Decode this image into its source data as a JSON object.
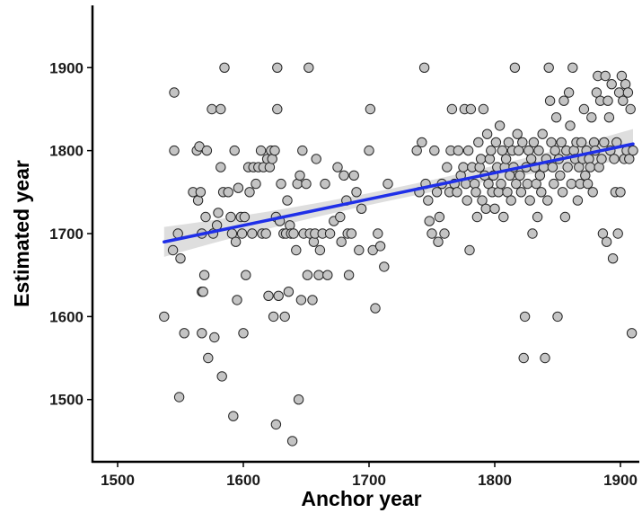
{
  "chart_data": {
    "type": "scatter",
    "title": "",
    "xlabel": "Anchor year",
    "ylabel": "Estimated year",
    "xlim": [
      1480,
      1915
    ],
    "ylim": [
      1425,
      1975
    ],
    "xticks": [
      1500,
      1600,
      1700,
      1800,
      1900
    ],
    "yticks": [
      1500,
      1600,
      1700,
      1800,
      1900
    ],
    "xtick_labels": [
      "1500",
      "1600",
      "1700",
      "1800",
      "1900"
    ],
    "ytick_labels": [
      "1500",
      "1600",
      "1700",
      "1800",
      "1900"
    ],
    "grid": false,
    "legend": "none",
    "colors": {
      "points_fill": "#c4c4c4",
      "points_edge": "#262626",
      "trend": "#1f2fe8",
      "band": "#c8c8c8"
    },
    "trend": {
      "x": [
        1537,
        1910
      ],
      "y": [
        1690,
        1808
      ],
      "band_halfwidth_ends": 18,
      "band_halfwidth_mid": 7
    },
    "points": [
      [
        1537,
        1600
      ],
      [
        1545,
        1870
      ],
      [
        1545,
        1800
      ],
      [
        1544,
        1680
      ],
      [
        1548,
        1700
      ],
      [
        1550,
        1670
      ],
      [
        1549,
        1503
      ],
      [
        1553,
        1580
      ],
      [
        1560,
        1750
      ],
      [
        1563,
        1800
      ],
      [
        1564,
        1740
      ],
      [
        1565,
        1805
      ],
      [
        1566,
        1750
      ],
      [
        1567,
        1700
      ],
      [
        1567,
        1630
      ],
      [
        1568,
        1630
      ],
      [
        1569,
        1650
      ],
      [
        1570,
        1720
      ],
      [
        1571,
        1800
      ],
      [
        1567,
        1580
      ],
      [
        1572,
        1550
      ],
      [
        1575,
        1850
      ],
      [
        1576,
        1700
      ],
      [
        1577,
        1575
      ],
      [
        1579,
        1710
      ],
      [
        1580,
        1725
      ],
      [
        1582,
        1850
      ],
      [
        1582,
        1780
      ],
      [
        1584,
        1750
      ],
      [
        1585,
        1900
      ],
      [
        1583,
        1528
      ],
      [
        1588,
        1750
      ],
      [
        1590,
        1720
      ],
      [
        1591,
        1700
      ],
      [
        1592,
        1480
      ],
      [
        1593,
        1800
      ],
      [
        1594,
        1690
      ],
      [
        1595,
        1620
      ],
      [
        1596,
        1755
      ],
      [
        1598,
        1720
      ],
      [
        1599,
        1700
      ],
      [
        1600,
        1580
      ],
      [
        1601,
        1720
      ],
      [
        1602,
        1650
      ],
      [
        1604,
        1780
      ],
      [
        1605,
        1750
      ],
      [
        1607,
        1700
      ],
      [
        1608,
        1780
      ],
      [
        1610,
        1760
      ],
      [
        1612,
        1780
      ],
      [
        1614,
        1800
      ],
      [
        1615,
        1700
      ],
      [
        1616,
        1780
      ],
      [
        1618,
        1700
      ],
      [
        1619,
        1790
      ],
      [
        1620,
        1625
      ],
      [
        1621,
        1780
      ],
      [
        1622,
        1800
      ],
      [
        1623,
        1790
      ],
      [
        1624,
        1600
      ],
      [
        1625,
        1800
      ],
      [
        1626,
        1720
      ],
      [
        1626,
        1470
      ],
      [
        1627,
        1900
      ],
      [
        1627,
        1850
      ],
      [
        1628,
        1625
      ],
      [
        1629,
        1715
      ],
      [
        1630,
        1760
      ],
      [
        1632,
        1700
      ],
      [
        1633,
        1600
      ],
      [
        1634,
        1700
      ],
      [
        1635,
        1740
      ],
      [
        1636,
        1630
      ],
      [
        1637,
        1710
      ],
      [
        1638,
        1700
      ],
      [
        1639,
        1450
      ],
      [
        1640,
        1700
      ],
      [
        1642,
        1680
      ],
      [
        1643,
        1760
      ],
      [
        1644,
        1500
      ],
      [
        1645,
        1770
      ],
      [
        1646,
        1620
      ],
      [
        1647,
        1800
      ],
      [
        1648,
        1700
      ],
      [
        1650,
        1760
      ],
      [
        1651,
        1650
      ],
      [
        1652,
        1900
      ],
      [
        1653,
        1700
      ],
      [
        1655,
        1620
      ],
      [
        1656,
        1690
      ],
      [
        1657,
        1700
      ],
      [
        1658,
        1790
      ],
      [
        1660,
        1650
      ],
      [
        1661,
        1680
      ],
      [
        1663,
        1700
      ],
      [
        1665,
        1760
      ],
      [
        1667,
        1650
      ],
      [
        1669,
        1700
      ],
      [
        1672,
        1715
      ],
      [
        1675,
        1780
      ],
      [
        1677,
        1720
      ],
      [
        1678,
        1690
      ],
      [
        1680,
        1770
      ],
      [
        1682,
        1740
      ],
      [
        1683,
        1700
      ],
      [
        1684,
        1650
      ],
      [
        1686,
        1700
      ],
      [
        1688,
        1770
      ],
      [
        1690,
        1750
      ],
      [
        1692,
        1680
      ],
      [
        1694,
        1730
      ],
      [
        1700,
        1800
      ],
      [
        1701,
        1850
      ],
      [
        1703,
        1680
      ],
      [
        1705,
        1610
      ],
      [
        1707,
        1700
      ],
      [
        1709,
        1685
      ],
      [
        1712,
        1660
      ],
      [
        1715,
        1760
      ],
      [
        1738,
        1800
      ],
      [
        1740,
        1750
      ],
      [
        1742,
        1810
      ],
      [
        1744,
        1900
      ],
      [
        1745,
        1760
      ],
      [
        1747,
        1740
      ],
      [
        1748,
        1715
      ],
      [
        1750,
        1700
      ],
      [
        1752,
        1800
      ],
      [
        1754,
        1750
      ],
      [
        1755,
        1690
      ],
      [
        1756,
        1720
      ],
      [
        1758,
        1760
      ],
      [
        1760,
        1700
      ],
      [
        1762,
        1780
      ],
      [
        1764,
        1750
      ],
      [
        1765,
        1800
      ],
      [
        1766,
        1850
      ],
      [
        1768,
        1760
      ],
      [
        1770,
        1750
      ],
      [
        1771,
        1800
      ],
      [
        1773,
        1770
      ],
      [
        1775,
        1780
      ],
      [
        1776,
        1850
      ],
      [
        1777,
        1760
      ],
      [
        1778,
        1740
      ],
      [
        1779,
        1800
      ],
      [
        1780,
        1680
      ],
      [
        1781,
        1850
      ],
      [
        1782,
        1780
      ],
      [
        1784,
        1760
      ],
      [
        1785,
        1750
      ],
      [
        1786,
        1720
      ],
      [
        1787,
        1810
      ],
      [
        1788,
        1780
      ],
      [
        1789,
        1790
      ],
      [
        1790,
        1740
      ],
      [
        1791,
        1850
      ],
      [
        1792,
        1770
      ],
      [
        1793,
        1730
      ],
      [
        1794,
        1820
      ],
      [
        1795,
        1760
      ],
      [
        1796,
        1790
      ],
      [
        1797,
        1800
      ],
      [
        1798,
        1750
      ],
      [
        1799,
        1770
      ],
      [
        1800,
        1730
      ],
      [
        1801,
        1810
      ],
      [
        1802,
        1780
      ],
      [
        1803,
        1750
      ],
      [
        1804,
        1830
      ],
      [
        1805,
        1760
      ],
      [
        1806,
        1800
      ],
      [
        1807,
        1720
      ],
      [
        1808,
        1780
      ],
      [
        1809,
        1790
      ],
      [
        1810,
        1750
      ],
      [
        1811,
        1810
      ],
      [
        1812,
        1770
      ],
      [
        1813,
        1740
      ],
      [
        1814,
        1800
      ],
      [
        1815,
        1780
      ],
      [
        1816,
        1900
      ],
      [
        1817,
        1760
      ],
      [
        1818,
        1820
      ],
      [
        1819,
        1800
      ],
      [
        1820,
        1770
      ],
      [
        1821,
        1750
      ],
      [
        1822,
        1810
      ],
      [
        1823,
        1550
      ],
      [
        1824,
        1600
      ],
      [
        1825,
        1780
      ],
      [
        1826,
        1760
      ],
      [
        1827,
        1800
      ],
      [
        1828,
        1740
      ],
      [
        1829,
        1790
      ],
      [
        1830,
        1700
      ],
      [
        1831,
        1810
      ],
      [
        1832,
        1780
      ],
      [
        1833,
        1760
      ],
      [
        1834,
        1720
      ],
      [
        1835,
        1800
      ],
      [
        1836,
        1770
      ],
      [
        1837,
        1750
      ],
      [
        1838,
        1820
      ],
      [
        1839,
        1780
      ],
      [
        1840,
        1550
      ],
      [
        1841,
        1790
      ],
      [
        1842,
        1740
      ],
      [
        1843,
        1900
      ],
      [
        1844,
        1860
      ],
      [
        1845,
        1810
      ],
      [
        1846,
        1780
      ],
      [
        1847,
        1760
      ],
      [
        1848,
        1800
      ],
      [
        1849,
        1840
      ],
      [
        1850,
        1600
      ],
      [
        1851,
        1790
      ],
      [
        1852,
        1770
      ],
      [
        1853,
        1810
      ],
      [
        1854,
        1750
      ],
      [
        1855,
        1860
      ],
      [
        1856,
        1720
      ],
      [
        1857,
        1800
      ],
      [
        1858,
        1780
      ],
      [
        1859,
        1870
      ],
      [
        1860,
        1830
      ],
      [
        1861,
        1760
      ],
      [
        1862,
        1900
      ],
      [
        1863,
        1800
      ],
      [
        1864,
        1790
      ],
      [
        1865,
        1810
      ],
      [
        1866,
        1740
      ],
      [
        1867,
        1780
      ],
      [
        1868,
        1760
      ],
      [
        1869,
        1810
      ],
      [
        1870,
        1790
      ],
      [
        1871,
        1850
      ],
      [
        1872,
        1770
      ],
      [
        1873,
        1800
      ],
      [
        1874,
        1760
      ],
      [
        1875,
        1790
      ],
      [
        1876,
        1780
      ],
      [
        1877,
        1840
      ],
      [
        1878,
        1750
      ],
      [
        1879,
        1810
      ],
      [
        1880,
        1800
      ],
      [
        1881,
        1870
      ],
      [
        1882,
        1890
      ],
      [
        1883,
        1780
      ],
      [
        1884,
        1860
      ],
      [
        1885,
        1790
      ],
      [
        1886,
        1700
      ],
      [
        1887,
        1810
      ],
      [
        1888,
        1890
      ],
      [
        1889,
        1690
      ],
      [
        1890,
        1860
      ],
      [
        1891,
        1840
      ],
      [
        1892,
        1800
      ],
      [
        1893,
        1880
      ],
      [
        1894,
        1670
      ],
      [
        1895,
        1790
      ],
      [
        1896,
        1750
      ],
      [
        1897,
        1810
      ],
      [
        1898,
        1700
      ],
      [
        1899,
        1870
      ],
      [
        1900,
        1750
      ],
      [
        1901,
        1890
      ],
      [
        1902,
        1860
      ],
      [
        1903,
        1790
      ],
      [
        1904,
        1880
      ],
      [
        1905,
        1800
      ],
      [
        1906,
        1870
      ],
      [
        1907,
        1790
      ],
      [
        1908,
        1850
      ],
      [
        1909,
        1580
      ],
      [
        1910,
        1800
      ]
    ]
  }
}
